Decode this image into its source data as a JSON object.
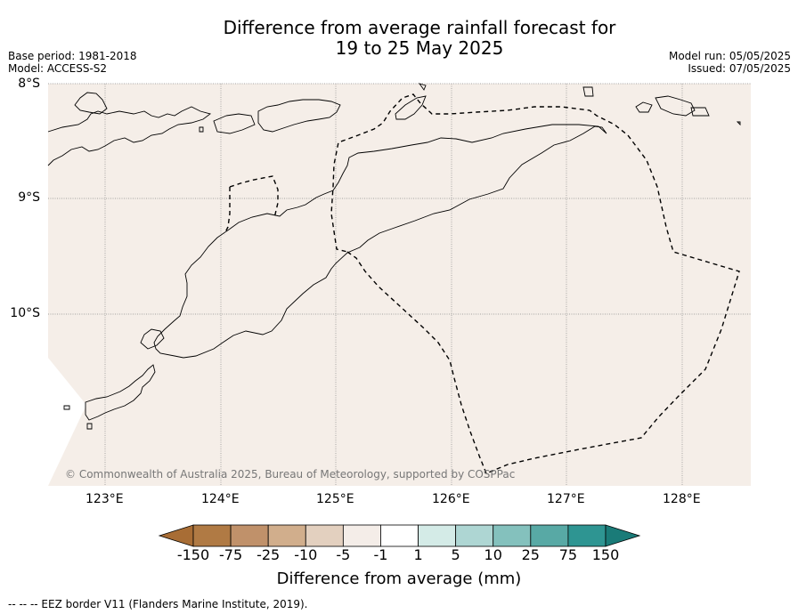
{
  "title_line1": "Difference from average rainfall forecast for",
  "title_line2": "19 to 25 May 2025",
  "base_period": "Base period: 1981-2018",
  "model": "Model: ACCESS-S2",
  "model_run": "Model run: 05/05/2025",
  "issued": "Issued: 07/05/2025",
  "lat_labels": [
    "8°S",
    "9°S",
    "10°S"
  ],
  "lon_labels": [
    "123°E",
    "124°E",
    "125°E",
    "126°E",
    "127°E",
    "128°E"
  ],
  "copyright": "© Commonwealth of Australia 2025, Bureau of Meteorology, supported by COSPPac",
  "colorbar": {
    "labels": [
      "-150",
      "-75",
      "-25",
      "-10",
      "-5",
      "-1",
      "1",
      "5",
      "10",
      "25",
      "75",
      "150"
    ],
    "colors": [
      "#a86d35",
      "#b07a44",
      "#c0916a",
      "#d1ae8c",
      "#e3d0bf",
      "#f4ede8",
      "#ffffff",
      "#d4ebe7",
      "#aed6d3",
      "#84c1bd",
      "#58a9a5",
      "#2e9592",
      "#1a7b78"
    ],
    "title": "Difference from average (mm)"
  },
  "background_color": "#f5eee8",
  "footnote": "--  --  -- EEZ border V11 (Flanders Marine Institute, 2019)."
}
